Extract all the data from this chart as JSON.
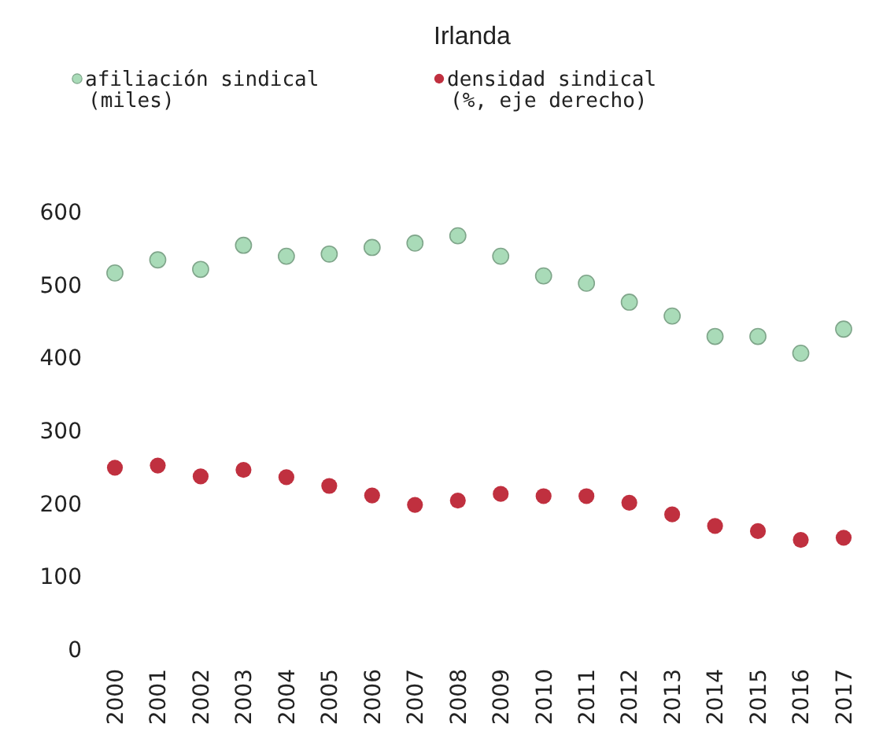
{
  "chart_data": {
    "type": "scatter",
    "title": "Irlanda",
    "categories": [
      "2000",
      "2001",
      "2002",
      "2003",
      "2004",
      "2005",
      "2006",
      "2007",
      "2008",
      "2009",
      "2010",
      "2011",
      "2012",
      "2013",
      "2014",
      "2015",
      "2016",
      "2017"
    ],
    "series": [
      {
        "name": "afiliación sindical (miles)",
        "color": "#a9dbb8",
        "values": [
          517,
          535,
          522,
          555,
          540,
          543,
          552,
          558,
          568,
          540,
          513,
          503,
          477,
          458,
          430,
          430,
          407,
          440
        ]
      },
      {
        "name": "densidad sindical (%, eje derecho)",
        "color": "#c0303f",
        "values": [
          250,
          253,
          238,
          247,
          237,
          225,
          212,
          199,
          205,
          214,
          211,
          211,
          202,
          186,
          170,
          163,
          151,
          154
        ]
      }
    ],
    "ylim": [
      0,
      600
    ],
    "yticks": [
      0,
      100,
      200,
      300,
      400,
      500,
      600
    ],
    "grid": false,
    "legend": "top left",
    "marker": "circle"
  }
}
